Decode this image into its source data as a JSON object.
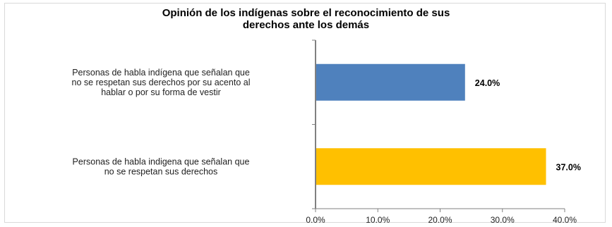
{
  "chart_data": {
    "type": "bar",
    "orientation": "horizontal",
    "title_lines": [
      "Opinión de los indígenas sobre el reconocimiento de sus",
      "derechos ante los demás"
    ],
    "categories": [
      [
        "Personas de habla indígena que señalan que",
        "no se respetan sus derechos por su acento al",
        "hablar o por su forma de vestir"
      ],
      [
        "Personas de habla indigena que señalan que",
        "no se respetan sus derechos"
      ]
    ],
    "values": [
      24.0,
      37.0
    ],
    "data_labels": [
      "24.0%",
      "37.0%"
    ],
    "colors": [
      "#4f81bd",
      "#ffc000"
    ],
    "xlim": [
      0,
      40
    ],
    "ticks": [
      0,
      10,
      20,
      30,
      40
    ],
    "tick_labels": [
      "0.0%",
      "10.0%",
      "20.0%",
      "30.0%",
      "40.0%"
    ],
    "xlabel": "",
    "ylabel": "",
    "grid": false,
    "legend": "none"
  }
}
